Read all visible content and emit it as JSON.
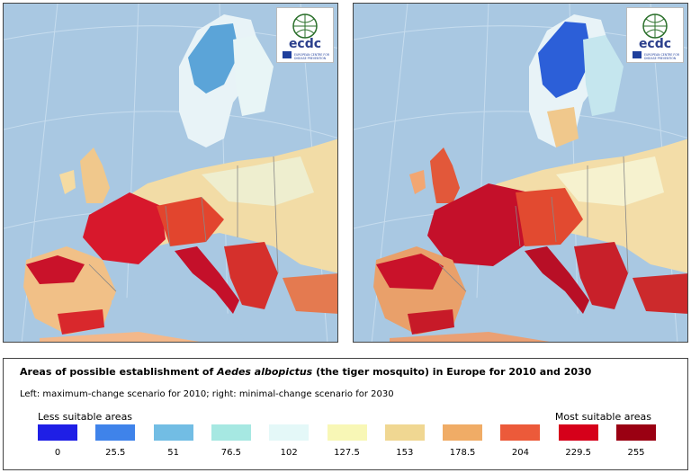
{
  "logo": {
    "text": "ecdc",
    "subtitle": "EUROPEAN CENTRE FOR DISEASE PREVENTION AND CONTROL"
  },
  "maps": [
    {
      "label": "left"
    },
    {
      "label": "right"
    }
  ],
  "legend": {
    "title_pre": "Areas of possible establishment of ",
    "title_species": "Aedes albopictus",
    "title_post": " (the tiger mosquito) in Europe for 2010 and 2030",
    "subtitle": "Left: maximum-change scenario for 2010; right: minimal-change scenario for 2030",
    "less_label": "Less suitable areas",
    "most_label": "Most suitable areas",
    "scale": [
      {
        "value": "0",
        "color": "#1f1fe6"
      },
      {
        "value": "25.5",
        "color": "#3f83ea"
      },
      {
        "value": "51",
        "color": "#72bde4"
      },
      {
        "value": "76.5",
        "color": "#a6e8e2"
      },
      {
        "value": "102",
        "color": "#e4f8f8"
      },
      {
        "value": "127.5",
        "color": "#f8f7b6"
      },
      {
        "value": "153",
        "color": "#f0d792"
      },
      {
        "value": "178.5",
        "color": "#f0ac66"
      },
      {
        "value": "204",
        "color": "#ec5a3a"
      },
      {
        "value": "229.5",
        "color": "#d6001a"
      },
      {
        "value": "255",
        "color": "#9a0012"
      }
    ]
  }
}
